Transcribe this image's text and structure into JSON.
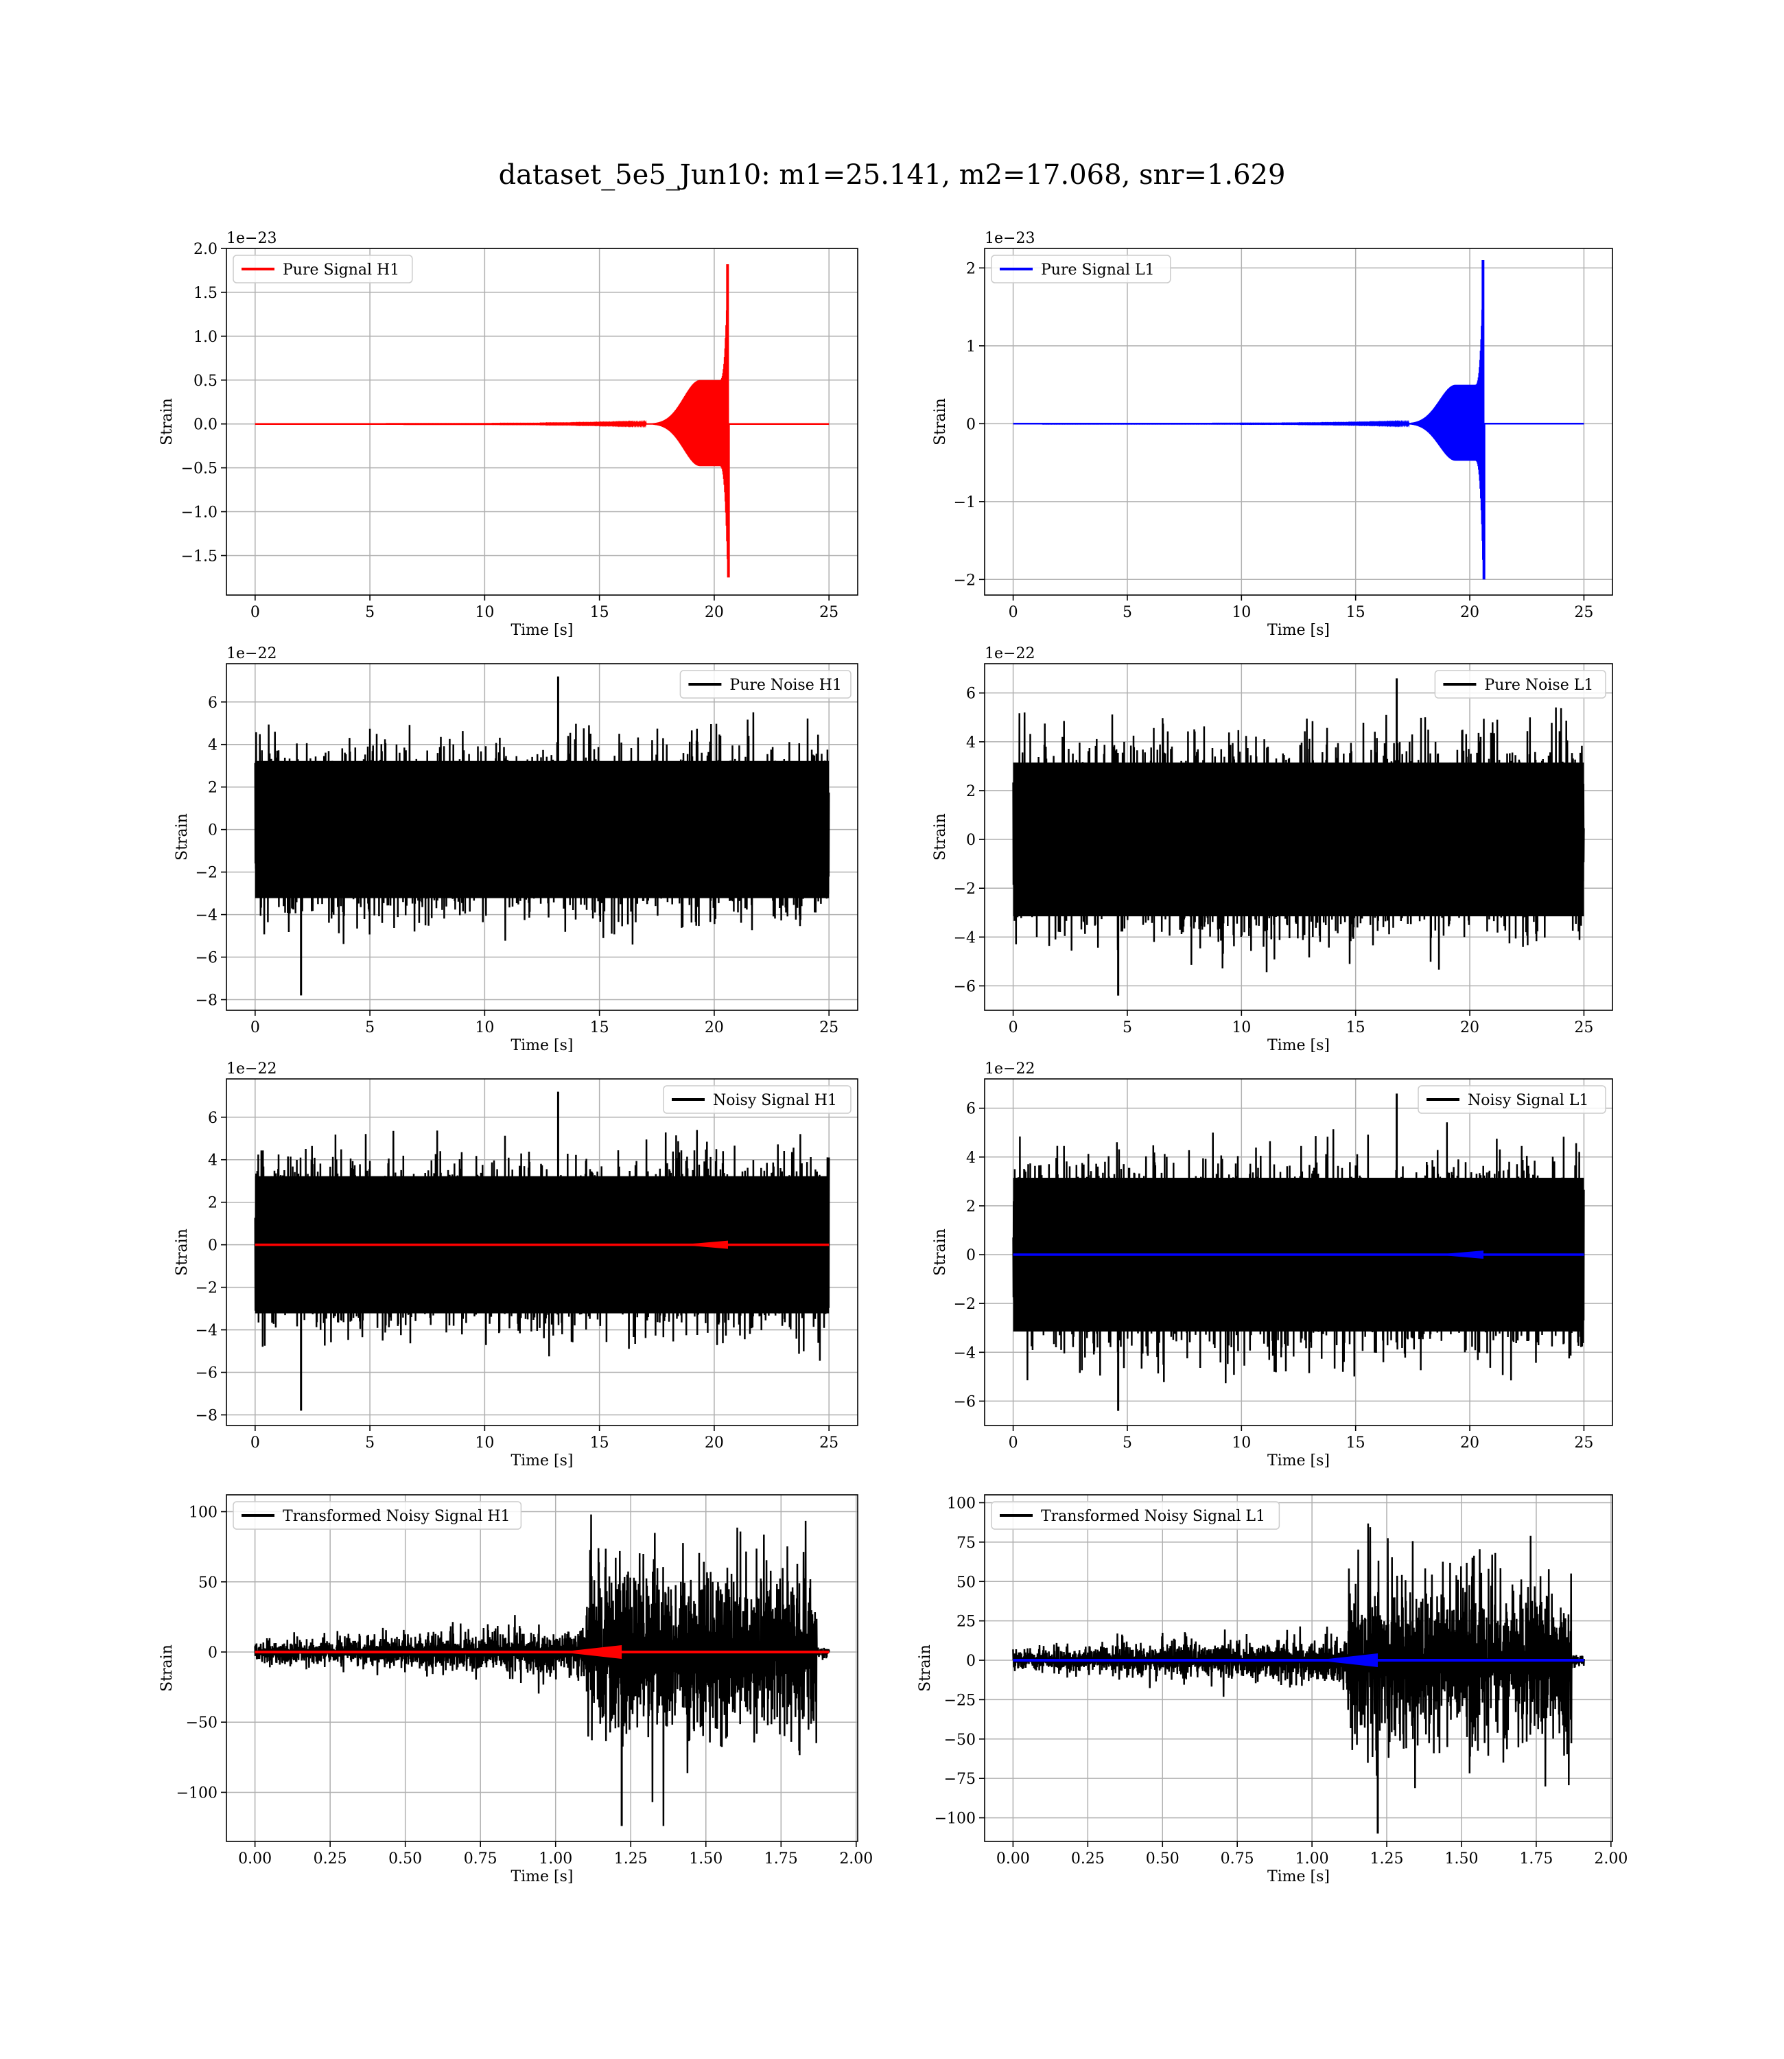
{
  "figure": {
    "title": "dataset_5e5_Jun10: m1=25.141, m2=17.068, snr=1.629"
  },
  "chart_data": [
    {
      "type": "line",
      "waveform": "chirp",
      "color": "#ff0000",
      "legend": "Pure Signal H1",
      "legend_loc": "top-left",
      "xlabel": "Time [s]",
      "ylabel": "Strain",
      "offset_text": "1e−23",
      "xlim": [
        -1.25,
        26.25
      ],
      "ylim": [
        -1.95,
        2.0
      ],
      "xticks": [
        0,
        5,
        10,
        15,
        20,
        25
      ],
      "xtick_labels": [
        "0",
        "5",
        "10",
        "15",
        "20",
        "25"
      ],
      "yticks": [
        -1.5,
        -1.0,
        -0.5,
        0.0,
        0.5,
        1.0,
        1.5,
        2.0
      ],
      "ytick_labels": [
        "−1.5",
        "−1.0",
        "−0.5",
        "0.0",
        "0.5",
        "1.0",
        "1.5",
        "2.0"
      ],
      "x_range": [
        0,
        25
      ],
      "merger_time": 20.6,
      "peak_pos": 1.82,
      "peak_neg": -1.75,
      "plateau": 0.5,
      "grid": true
    },
    {
      "type": "line",
      "waveform": "chirp",
      "color": "#0000ff",
      "legend": "Pure Signal L1",
      "legend_loc": "top-left",
      "xlabel": "Time [s]",
      "ylabel": "Strain",
      "offset_text": "1e−23",
      "xlim": [
        -1.25,
        26.25
      ],
      "ylim": [
        -2.2,
        2.25
      ],
      "xticks": [
        0,
        5,
        10,
        15,
        20,
        25
      ],
      "xtick_labels": [
        "0",
        "5",
        "10",
        "15",
        "20",
        "25"
      ],
      "yticks": [
        -2,
        -1,
        0,
        1,
        2
      ],
      "ytick_labels": [
        "−2",
        "−1",
        "0",
        "1",
        "2"
      ],
      "x_range": [
        0,
        25
      ],
      "merger_time": 20.6,
      "peak_pos": 2.1,
      "peak_neg": -2.0,
      "plateau": 0.5,
      "grid": true
    },
    {
      "type": "line",
      "waveform": "noise",
      "color": "#000000",
      "legend": "Pure Noise H1",
      "legend_loc": "top-right",
      "xlabel": "Time [s]",
      "ylabel": "Strain",
      "offset_text": "1e−22",
      "xlim": [
        -1.25,
        26.25
      ],
      "ylim": [
        -8.5,
        7.8
      ],
      "xticks": [
        0,
        5,
        10,
        15,
        20,
        25
      ],
      "xtick_labels": [
        "0",
        "5",
        "10",
        "15",
        "20",
        "25"
      ],
      "yticks": [
        -8,
        -6,
        -4,
        -2,
        0,
        2,
        4,
        6
      ],
      "ytick_labels": [
        "−8",
        "−6",
        "−4",
        "−2",
        "0",
        "2",
        "4",
        "6"
      ],
      "x_range": [
        0,
        25
      ],
      "envelope_pos": 4.3,
      "envelope_neg": -4.3,
      "max": 7.2,
      "min": -7.8,
      "max_at": 13.2,
      "min_at": 2.0,
      "grid": true
    },
    {
      "type": "line",
      "waveform": "noise",
      "color": "#000000",
      "legend": "Pure Noise L1",
      "legend_loc": "top-right",
      "xlabel": "Time [s]",
      "ylabel": "Strain",
      "offset_text": "1e−22",
      "xlim": [
        -1.25,
        26.25
      ],
      "ylim": [
        -7.0,
        7.2
      ],
      "xticks": [
        0,
        5,
        10,
        15,
        20,
        25
      ],
      "xtick_labels": [
        "0",
        "5",
        "10",
        "15",
        "20",
        "25"
      ],
      "yticks": [
        -6,
        -4,
        -2,
        0,
        2,
        4,
        6
      ],
      "ytick_labels": [
        "−6",
        "−4",
        "−2",
        "0",
        "2",
        "4",
        "6"
      ],
      "x_range": [
        0,
        25
      ],
      "envelope_pos": 4.2,
      "envelope_neg": -4.2,
      "max": 6.6,
      "min": -6.4,
      "max_at": 16.8,
      "min_at": 4.6,
      "grid": true
    },
    {
      "type": "line",
      "waveform": "noise+signal",
      "color": "#000000",
      "signal_color": "#ff0000",
      "legend": "Noisy Signal H1",
      "legend_loc": "top-right",
      "xlabel": "Time [s]",
      "ylabel": "Strain",
      "offset_text": "1e−22",
      "xlim": [
        -1.25,
        26.25
      ],
      "ylim": [
        -8.5,
        7.8
      ],
      "xticks": [
        0,
        5,
        10,
        15,
        20,
        25
      ],
      "xtick_labels": [
        "0",
        "5",
        "10",
        "15",
        "20",
        "25"
      ],
      "yticks": [
        -8,
        -6,
        -4,
        -2,
        0,
        2,
        4,
        6
      ],
      "ytick_labels": [
        "−8",
        "−6",
        "−4",
        "−2",
        "0",
        "2",
        "4",
        "6"
      ],
      "x_range": [
        0,
        25
      ],
      "envelope_pos": 4.3,
      "envelope_neg": -4.3,
      "max": 7.2,
      "min": -7.8,
      "max_at": 13.2,
      "min_at": 2.0,
      "merger_time": 20.6,
      "grid": true
    },
    {
      "type": "line",
      "waveform": "noise+signal",
      "color": "#000000",
      "signal_color": "#0000ff",
      "legend": "Noisy Signal L1",
      "legend_loc": "top-right",
      "xlabel": "Time [s]",
      "ylabel": "Strain",
      "offset_text": "1e−22",
      "xlim": [
        -1.25,
        26.25
      ],
      "ylim": [
        -7.0,
        7.2
      ],
      "xticks": [
        0,
        5,
        10,
        15,
        20,
        25
      ],
      "xtick_labels": [
        "0",
        "5",
        "10",
        "15",
        "20",
        "25"
      ],
      "yticks": [
        -6,
        -4,
        -2,
        0,
        2,
        4,
        6
      ],
      "ytick_labels": [
        "−6",
        "−4",
        "−2",
        "0",
        "2",
        "4",
        "6"
      ],
      "x_range": [
        0,
        25
      ],
      "envelope_pos": 4.2,
      "envelope_neg": -4.2,
      "max": 6.6,
      "min": -6.4,
      "max_at": 16.8,
      "min_at": 4.6,
      "merger_time": 20.6,
      "grid": true
    },
    {
      "type": "line",
      "waveform": "transformed",
      "color": "#000000",
      "signal_color": "#ff0000",
      "legend": "Transformed Noisy Signal H1",
      "legend_loc": "top-left",
      "xlabel": "Time [s]",
      "ylabel": "Strain",
      "offset_text": "",
      "xlim": [
        -0.095,
        2.005
      ],
      "ylim": [
        -135,
        112
      ],
      "xticks": [
        0.0,
        0.25,
        0.5,
        0.75,
        1.0,
        1.25,
        1.5,
        1.75,
        2.0
      ],
      "xtick_labels": [
        "0.00",
        "0.25",
        "0.50",
        "0.75",
        "1.00",
        "1.25",
        "1.50",
        "1.75",
        "2.00"
      ],
      "yticks": [
        -100,
        -50,
        0,
        50,
        100
      ],
      "ytick_labels": [
        "−100",
        "−50",
        "0",
        "50",
        "100"
      ],
      "x_range": [
        0,
        1.91
      ],
      "jump_at": 1.1,
      "end_at": 1.87,
      "merger_at": 1.22,
      "low_level": 7,
      "high_level": 60,
      "max": 100,
      "min": -124,
      "grid": true
    },
    {
      "type": "line",
      "waveform": "transformed",
      "color": "#000000",
      "signal_color": "#0000ff",
      "legend": "Transformed Noisy Signal L1",
      "legend_loc": "top-left",
      "xlabel": "Time [s]",
      "ylabel": "Strain",
      "offset_text": "",
      "xlim": [
        -0.095,
        2.005
      ],
      "ylim": [
        -115,
        105
      ],
      "xticks": [
        0.0,
        0.25,
        0.5,
        0.75,
        1.0,
        1.25,
        1.5,
        1.75,
        2.0
      ],
      "xtick_labels": [
        "0.00",
        "0.25",
        "0.50",
        "0.75",
        "1.00",
        "1.25",
        "1.50",
        "1.75",
        "2.00"
      ],
      "yticks": [
        -100,
        -75,
        -50,
        -25,
        0,
        25,
        50,
        75,
        100
      ],
      "ytick_labels": [
        "−100",
        "−75",
        "−50",
        "−25",
        "0",
        "25",
        "50",
        "75",
        "100"
      ],
      "x_range": [
        0,
        1.91
      ],
      "jump_at": 1.12,
      "end_at": 1.87,
      "merger_at": 1.22,
      "low_level": 6,
      "high_level": 50,
      "max": 88,
      "min": -110,
      "grid": true
    }
  ]
}
